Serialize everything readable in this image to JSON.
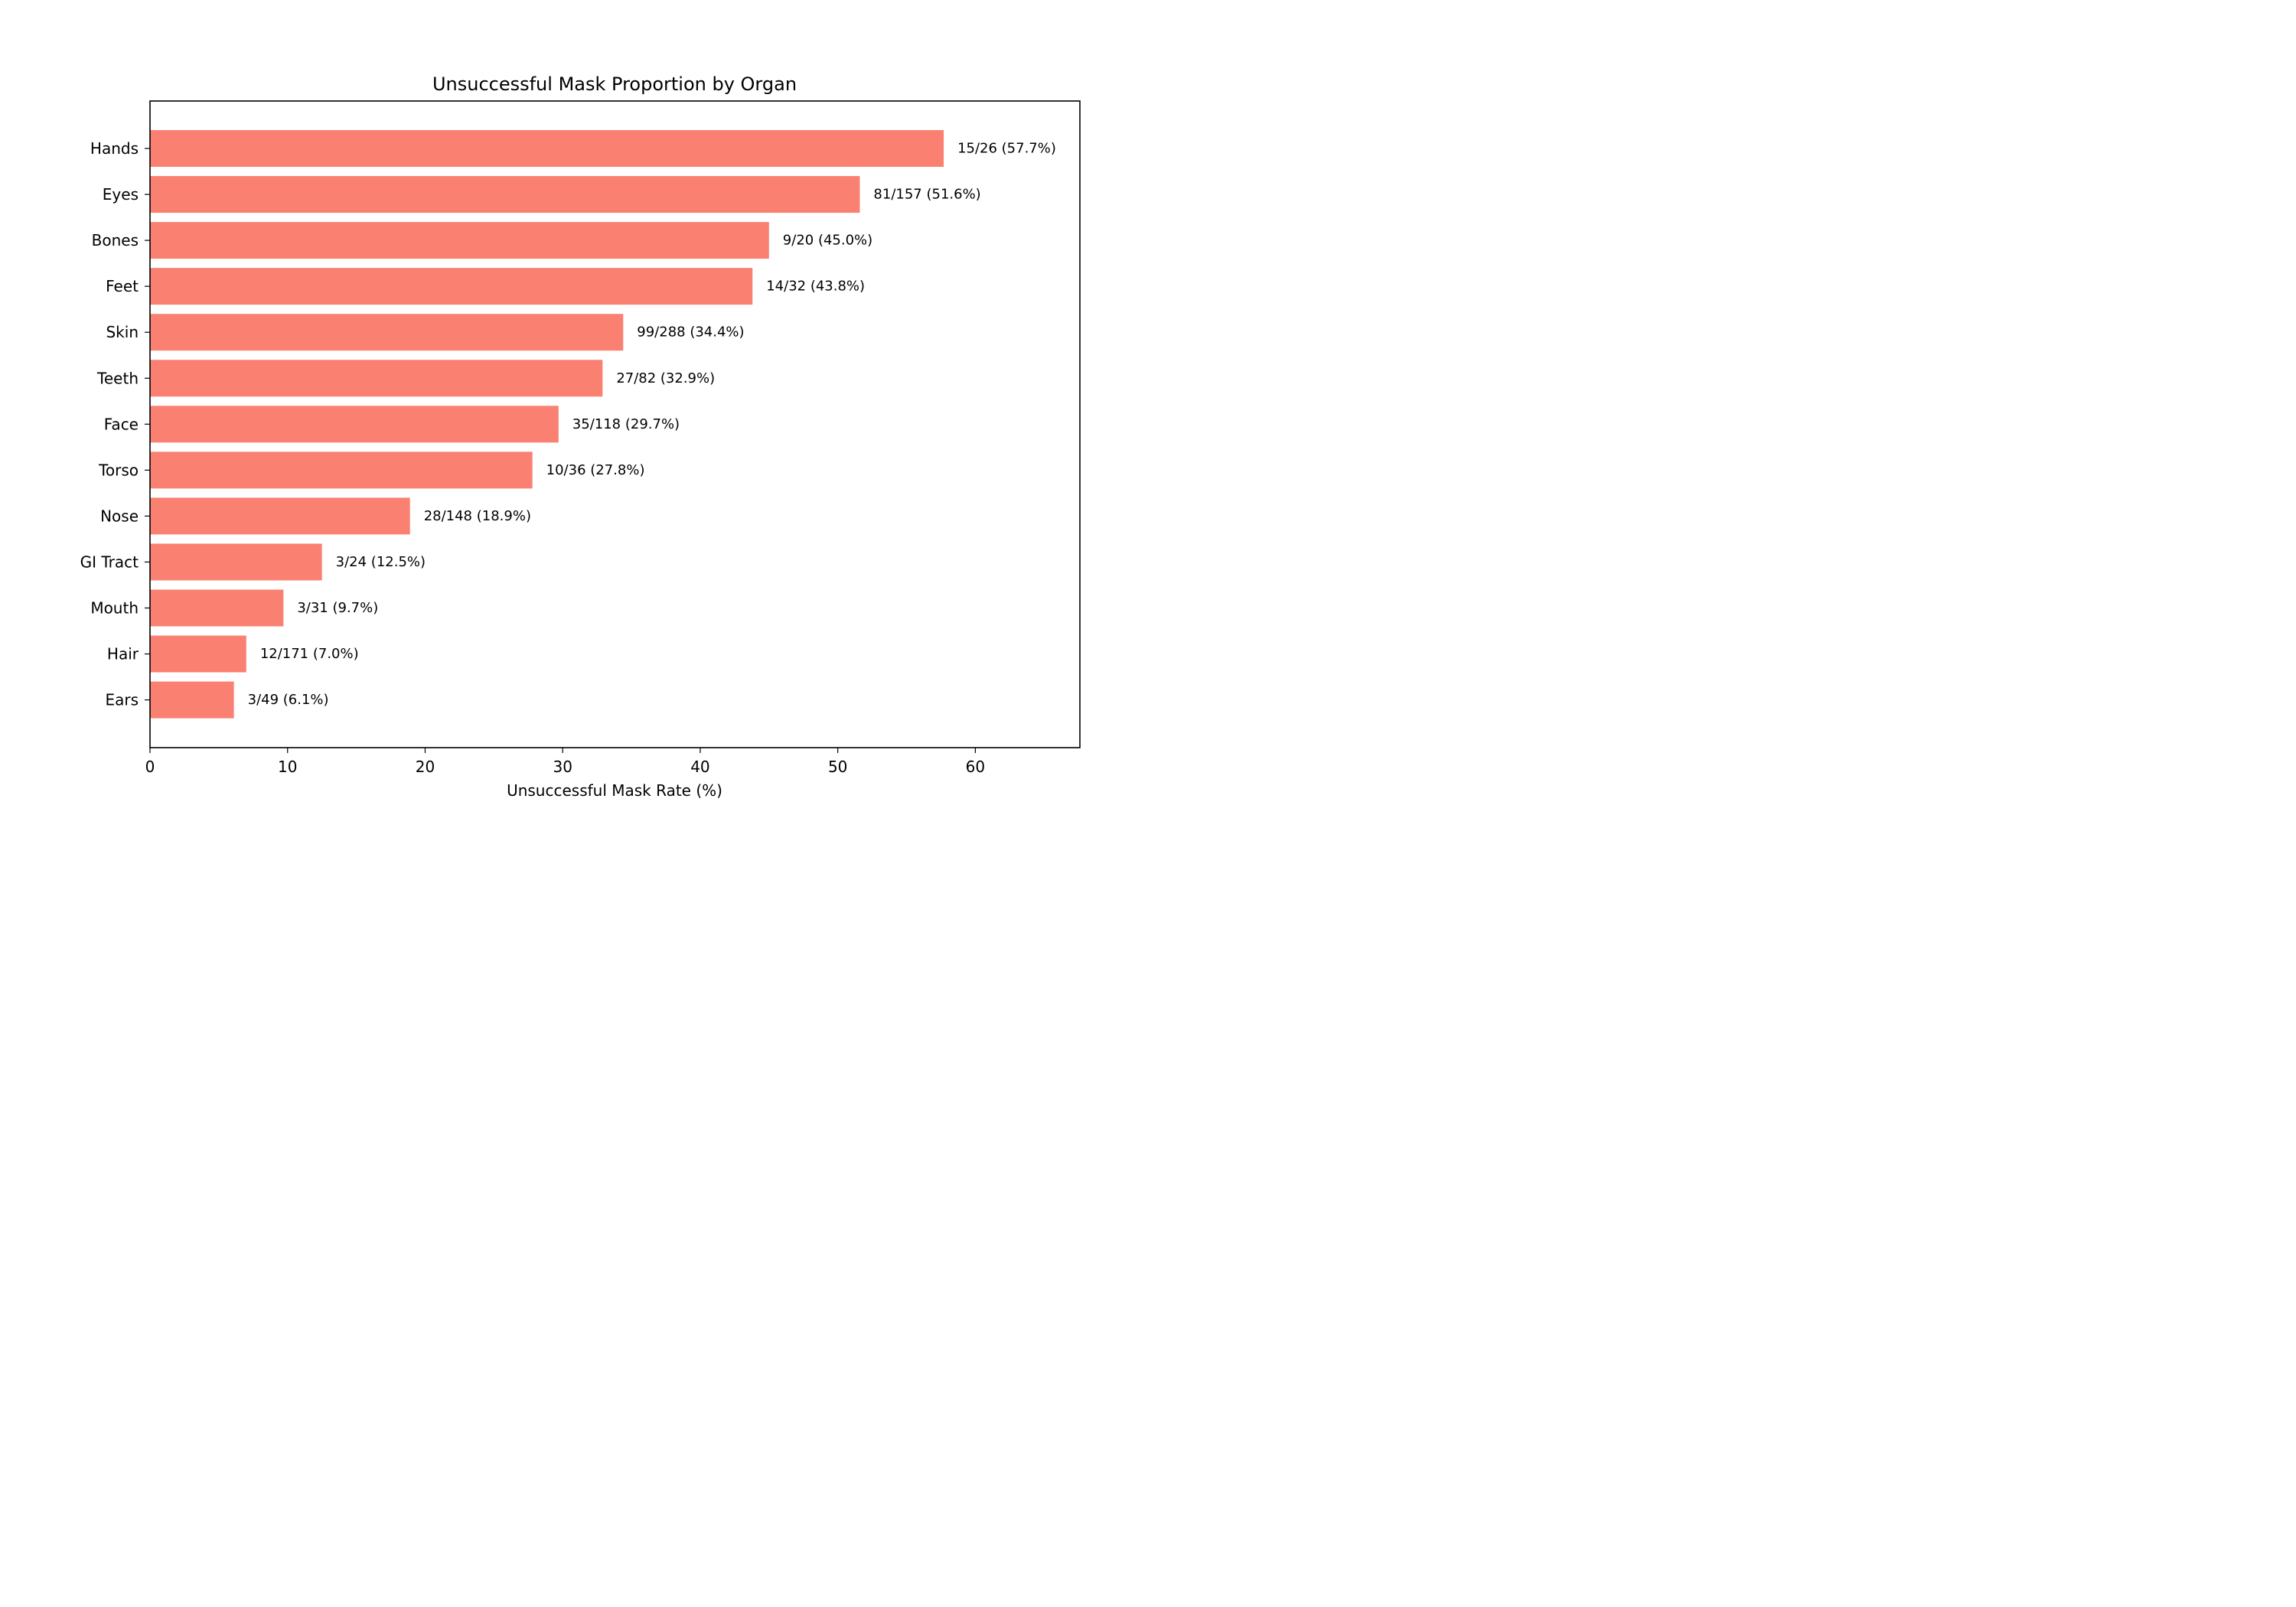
{
  "chart_data": {
    "type": "bar",
    "orientation": "horizontal",
    "title": "Unsuccessful Mask Proportion by Organ",
    "xlabel": "Unsuccessful Mask Rate (%)",
    "ylabel": "",
    "xlim": [
      0,
      67.6
    ],
    "xticks": [
      0,
      10,
      20,
      30,
      40,
      50,
      60
    ],
    "grid": false,
    "bar_color": "#fa8072",
    "categories": [
      "Hands",
      "Eyes",
      "Bones",
      "Feet",
      "Skin",
      "Teeth",
      "Face",
      "Torso",
      "Nose",
      "GI Tract",
      "Mouth",
      "Hair",
      "Ears"
    ],
    "values": [
      57.7,
      51.6,
      45.0,
      43.8,
      34.4,
      32.9,
      29.7,
      27.8,
      18.9,
      12.5,
      9.7,
      7.0,
      6.1
    ],
    "data_labels": [
      "15/26 (57.7%)",
      "81/157 (51.6%)",
      "9/20 (45.0%)",
      "14/32 (43.8%)",
      "99/288 (34.4%)",
      "27/82 (32.9%)",
      "35/118 (29.7%)",
      "10/36 (27.8%)",
      "28/148 (18.9%)",
      "3/24 (12.5%)",
      "3/31 (9.7%)",
      "12/171 (7.0%)",
      "3/49 (6.1%)"
    ]
  }
}
